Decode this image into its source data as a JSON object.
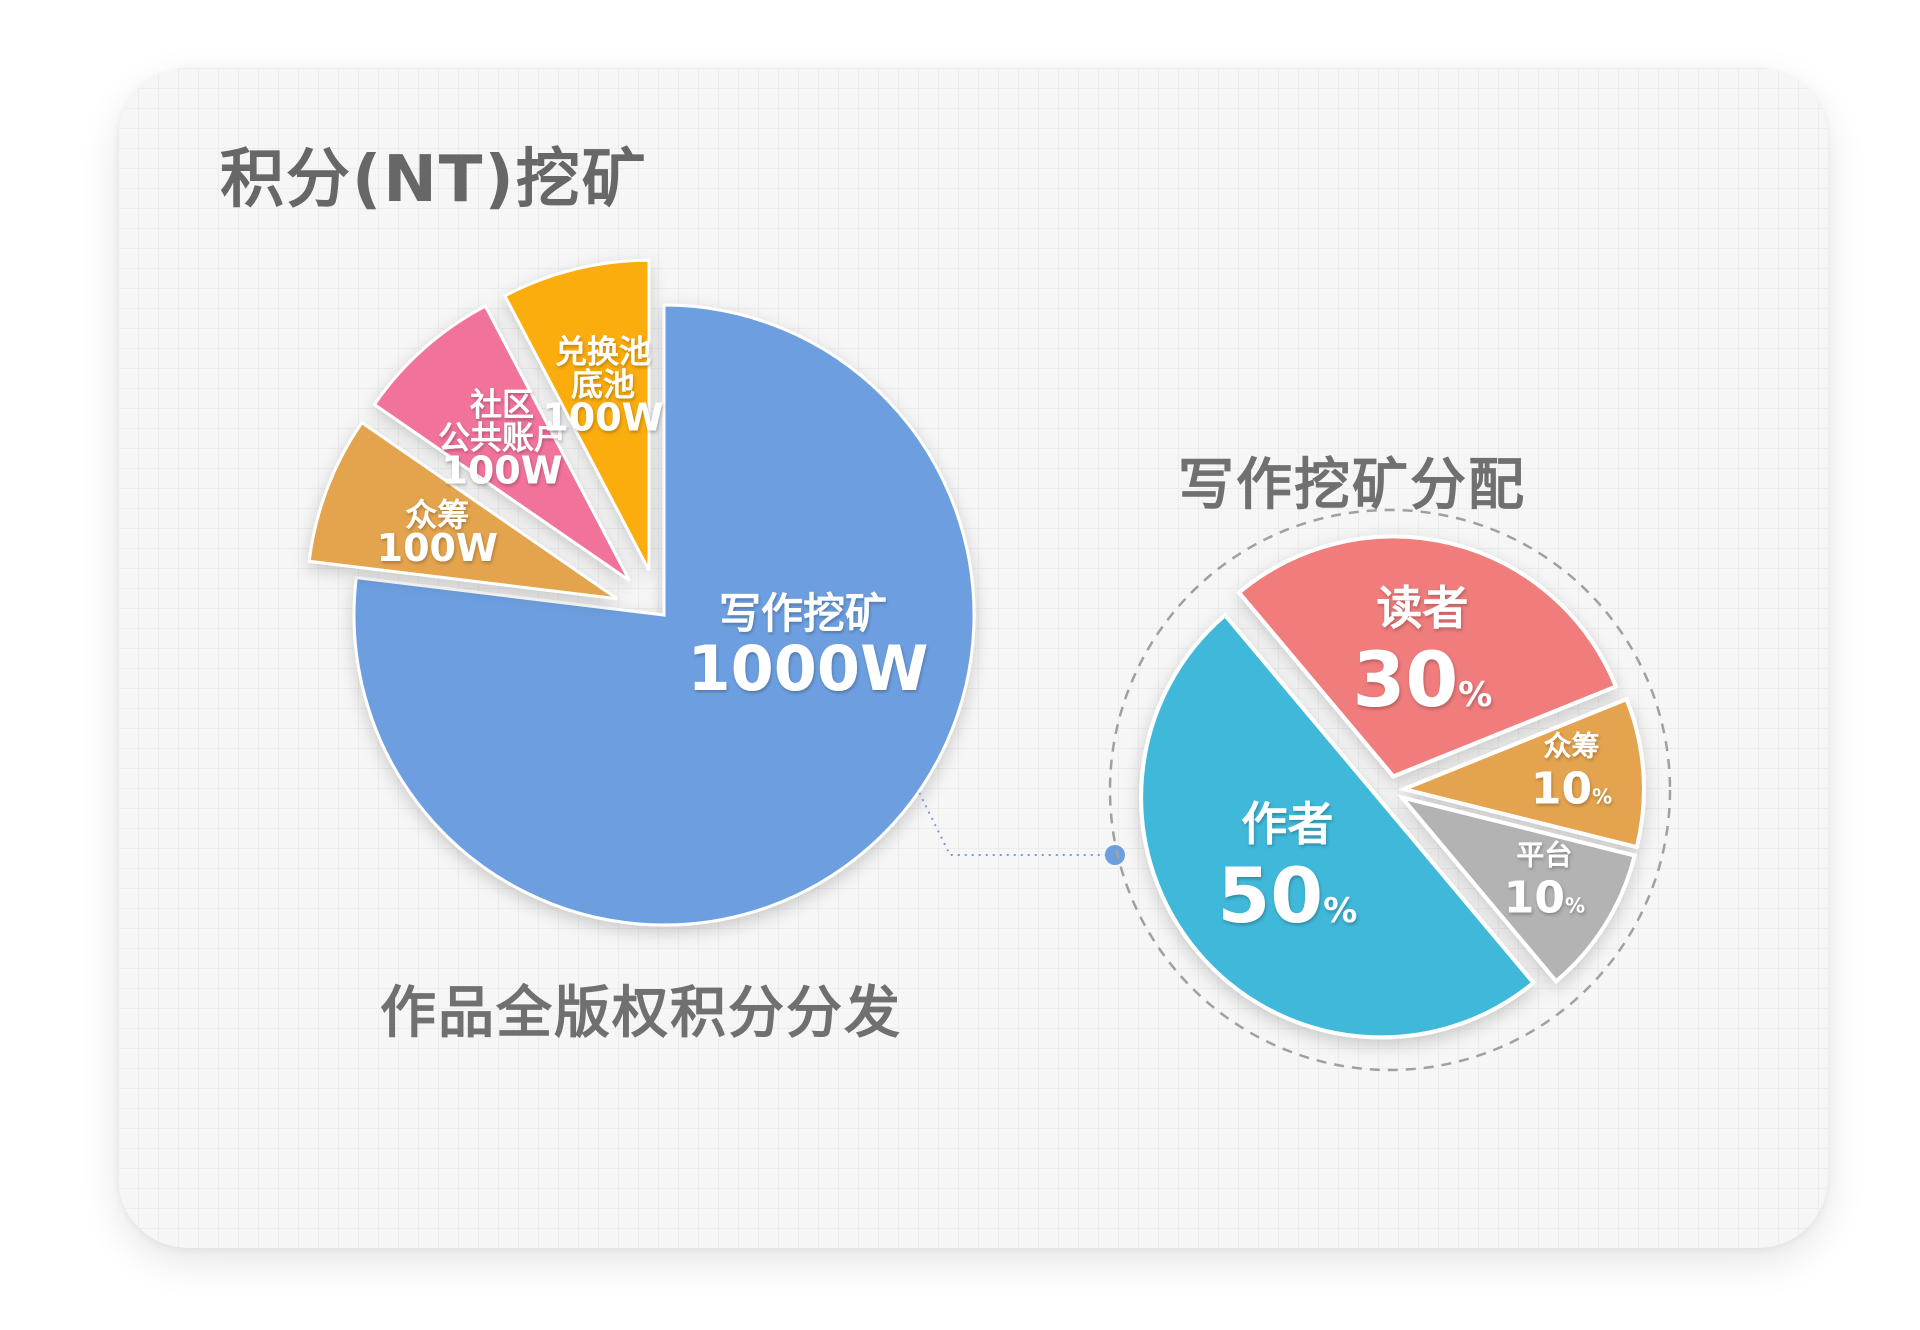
{
  "title": "积分(NT)挖矿",
  "subtitle": "作品全版权积分分发",
  "right_title": "写作挖矿分配",
  "chart_data": [
    {
      "type": "pie",
      "title": "积分(NT)挖矿",
      "caption": "作品全版权积分分发",
      "unit": "W",
      "slices": [
        {
          "label": "写作挖矿",
          "display_value": "1000W",
          "value": 1000,
          "color": "#6d9fe0"
        },
        {
          "label": "众筹",
          "display_value": "100W",
          "value": 100,
          "color": "#e3a44e"
        },
        {
          "label": "社区 公共账户",
          "display_value": "100W",
          "value": 100,
          "color": "#f2739a"
        },
        {
          "label": "兑换池 底池",
          "display_value": "100W",
          "value": 100,
          "color": "#fbad0c"
        }
      ]
    },
    {
      "type": "pie",
      "title": "写作挖矿分配",
      "unit": "%",
      "slices": [
        {
          "label": "读者",
          "value": 30,
          "color": "#f07b7b"
        },
        {
          "label": "众筹",
          "value": 10,
          "color": "#e4a44f"
        },
        {
          "label": "平台",
          "value": 10,
          "color": "#b3b3b3"
        },
        {
          "label": "作者",
          "value": 50,
          "color": "#3fb8da"
        }
      ]
    }
  ]
}
